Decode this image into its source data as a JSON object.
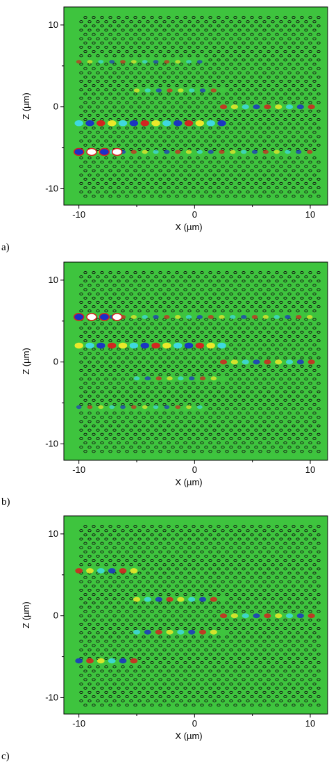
{
  "colors": {
    "background": "#3ec43e",
    "hole_stroke": "#111111",
    "field_red": "#d81f1f",
    "field_blue": "#1a2fc8",
    "field_yellow": "#f2e92a",
    "field_cyan": "#3fd9e6",
    "field_white": "#ffffff"
  },
  "chart_data": [
    {
      "type": "heatmap",
      "panel_label": "a)",
      "xlabel": "X (µm)",
      "ylabel": "Z (µm)",
      "xlim": [
        -11.3,
        11.5
      ],
      "ylim": [
        -12,
        12.2
      ],
      "xticks": [
        -10,
        0,
        10
      ],
      "yticks": [
        10,
        0,
        -10
      ],
      "xtick_labels": [
        "-10",
        "0",
        "10"
      ],
      "ytick_labels": [
        "10",
        "0",
        "-10"
      ],
      "waveguides": [
        {
          "x": [
            -10,
            0.5
          ],
          "z": 5.5,
          "amplitude": 0.25
        },
        {
          "x": [
            -5,
            2.5
          ],
          "z": 2,
          "amplitude": 0.35
        },
        {
          "x": [
            -10,
            2.5
          ],
          "z": -2,
          "amplitude": 0.9
        },
        {
          "x": [
            -10,
            10.5
          ],
          "z": -5.5,
          "amplitude": 0.35
        },
        {
          "x": [
            2.5,
            10.5
          ],
          "z": 0,
          "amplitude": 0.6
        }
      ],
      "hot_spot": {
        "x": [
          -10,
          -6
        ],
        "z": -5.5
      }
    },
    {
      "type": "heatmap",
      "panel_label": "b)",
      "xlabel": "X (µm)",
      "ylabel": "Z (µm)",
      "xlim": [
        -11.3,
        11.5
      ],
      "ylim": [
        -12,
        12.2
      ],
      "xticks": [
        -10,
        0,
        10
      ],
      "yticks": [
        10,
        0,
        -10
      ],
      "xtick_labels": [
        "-10",
        "0",
        "10"
      ],
      "ytick_labels": [
        "10",
        "0",
        "-10"
      ],
      "waveguides": [
        {
          "x": [
            -10,
            10.5
          ],
          "z": 5.5,
          "amplitude": 0.35
        },
        {
          "x": [
            -10,
            2.5
          ],
          "z": 2,
          "amplitude": 0.9
        },
        {
          "x": [
            -5,
            2.5
          ],
          "z": -2,
          "amplitude": 0.35
        },
        {
          "x": [
            -10,
            0.5
          ],
          "z": -5.5,
          "amplitude": 0.25
        },
        {
          "x": [
            2.5,
            10.5
          ],
          "z": 0,
          "amplitude": 0.6
        }
      ],
      "hot_spot": {
        "x": [
          -10,
          -6
        ],
        "z": 5.5
      }
    },
    {
      "type": "heatmap",
      "panel_label": "c)",
      "xlabel": "X (µm)",
      "ylabel": "Z (µm)",
      "xlim": [
        -11.3,
        11.5
      ],
      "ylim": [
        -12,
        12.2
      ],
      "xticks": [
        -10,
        0,
        10
      ],
      "yticks": [
        10,
        0,
        -10
      ],
      "xtick_labels": [
        "-10",
        "0",
        "10"
      ],
      "ytick_labels": [
        "10",
        "0",
        "-10"
      ],
      "waveguides": [
        {
          "x": [
            -10,
            -5
          ],
          "z": 5.5,
          "amplitude": 0.7
        },
        {
          "x": [
            -5,
            2.5
          ],
          "z": 2,
          "amplitude": 0.6
        },
        {
          "x": [
            -5,
            2.5
          ],
          "z": -2,
          "amplitude": 0.6
        },
        {
          "x": [
            -10,
            -5
          ],
          "z": -5.5,
          "amplitude": 0.7
        },
        {
          "x": [
            2.5,
            10.5
          ],
          "z": 0,
          "amplitude": 0.6
        }
      ],
      "hot_spot": null
    }
  ]
}
